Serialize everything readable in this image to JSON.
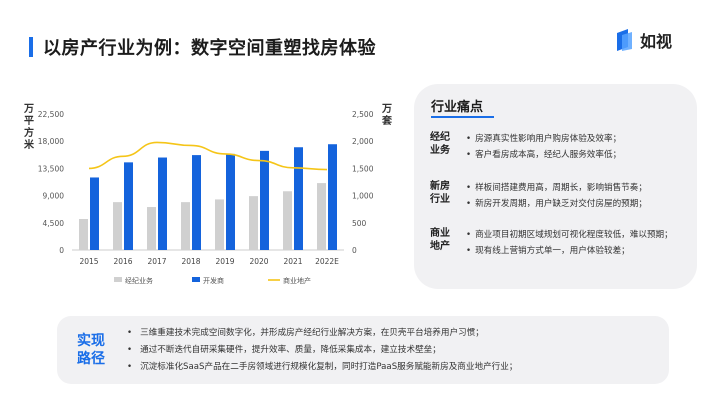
{
  "header": {
    "title": "以房产行业为例：数字空间重塑找房体验",
    "logo_text": "如视",
    "accent_color": "#1a6ee8"
  },
  "chart_data": {
    "type": "bar",
    "categories": [
      "2015",
      "2016",
      "2017",
      "2018",
      "2019",
      "2020",
      "2021",
      "2022E"
    ],
    "y_left_label": "万平方米",
    "y_right_label": "万套",
    "y_left_ticks": [
      "0",
      "4,500",
      "9,000",
      "13,500",
      "18,000",
      "22,500"
    ],
    "y_right_ticks": [
      "0",
      "500",
      "1,000",
      "1,500",
      "2,000",
      "2,500"
    ],
    "y_left_lim": [
      0,
      22500
    ],
    "y_right_lim": [
      0,
      2500
    ],
    "series": [
      {
        "name": "经纪业务",
        "axis": "right",
        "kind": "bar",
        "color": "#d0d0d0",
        "values": [
          570,
          880,
          790,
          880,
          930,
          990,
          1080,
          1230
        ]
      },
      {
        "name": "开发商",
        "axis": "left",
        "kind": "bar",
        "color": "#1463dc",
        "values": [
          12000,
          14500,
          15300,
          15700,
          15900,
          16400,
          17000,
          17500
        ]
      },
      {
        "name": "商业地产",
        "axis": "left",
        "kind": "line",
        "color": "#f5c518",
        "values": [
          13500,
          15500,
          17800,
          17300,
          15900,
          14800,
          13600,
          13300
        ]
      }
    ],
    "legend_position": "bottom"
  },
  "pain_points": {
    "title": "行业痛点",
    "groups": [
      {
        "label": "经纪业务",
        "items": [
          "房源真实性影响用户购房体验及效率；",
          "客户看房成本高，经纪人服务效率低；"
        ]
      },
      {
        "label": "新房行业",
        "items": [
          "样板间搭建费用高，周期长，影响销售节奏；",
          "新房开发周期，用户缺乏对交付房屋的预期；"
        ]
      },
      {
        "label": "商业地产",
        "items": [
          "商业项目初期区域规划可视化程度较低，难以预期；",
          "现有线上营销方式单一，用户体验较差；"
        ]
      }
    ]
  },
  "path": {
    "label": "实现路径",
    "items": [
      "三维重建技术完成空间数字化，并形成房产经纪行业解决方案，在贝壳平台培养用户习惯；",
      "通过不断迭代自研采集硬件，提升效率、质量，降低采集成本，建立技术壁垒；",
      "沉淀标准化SaaS产品在二手房领域进行规模化复制，同时打造PaaS服务赋能新房及商业地产行业；"
    ]
  }
}
